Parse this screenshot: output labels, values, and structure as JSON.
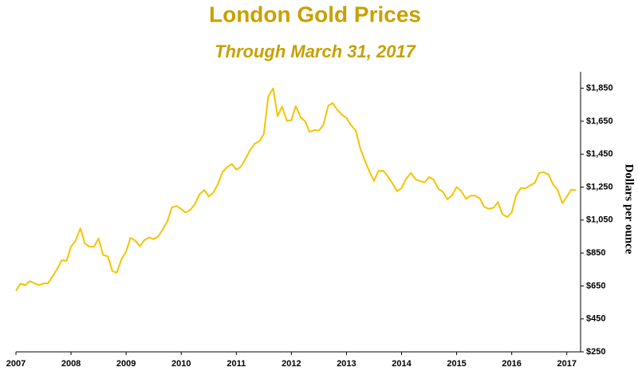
{
  "chart_data": {
    "type": "line",
    "title": "London Gold Prices",
    "subtitle": "Through March 31, 2017",
    "y_label": "Dollars per ounce",
    "xlim": [
      2007,
      2017.25
    ],
    "xticks": [
      2007,
      2008,
      2009,
      2010,
      2011,
      2012,
      2013,
      2014,
      2015,
      2016,
      2017
    ],
    "ylim": [
      250,
      1950
    ],
    "yticks": [
      {
        "value": 250,
        "label": "$250"
      },
      {
        "value": 450,
        "label": "$450"
      },
      {
        "value": 650,
        "label": "$650"
      },
      {
        "value": 850,
        "label": "$850"
      },
      {
        "value": 1050,
        "label": "$1,050"
      },
      {
        "value": 1250,
        "label": "$1,250"
      },
      {
        "value": 1450,
        "label": "$1,450"
      },
      {
        "value": 1650,
        "label": "$1,650"
      },
      {
        "value": 1850,
        "label": "$1,850"
      }
    ],
    "x": [
      2007,
      2007.08,
      2007.17,
      2007.25,
      2007.33,
      2007.42,
      2007.5,
      2007.58,
      2007.67,
      2007.75,
      2007.83,
      2007.92,
      2008,
      2008.08,
      2008.17,
      2008.25,
      2008.33,
      2008.42,
      2008.5,
      2008.58,
      2008.67,
      2008.75,
      2008.83,
      2008.92,
      2009,
      2009.08,
      2009.17,
      2009.25,
      2009.33,
      2009.42,
      2009.5,
      2009.58,
      2009.67,
      2009.75,
      2009.83,
      2009.92,
      2010,
      2010.08,
      2010.17,
      2010.25,
      2010.33,
      2010.42,
      2010.5,
      2010.58,
      2010.67,
      2010.75,
      2010.83,
      2010.92,
      2011,
      2011.08,
      2011.17,
      2011.25,
      2011.33,
      2011.42,
      2011.5,
      2011.58,
      2011.67,
      2011.75,
      2011.83,
      2011.92,
      2012,
      2012.08,
      2012.17,
      2012.25,
      2012.33,
      2012.42,
      2012.5,
      2012.58,
      2012.67,
      2012.75,
      2012.83,
      2012.92,
      2013,
      2013.08,
      2013.17,
      2013.25,
      2013.33,
      2013.42,
      2013.5,
      2013.58,
      2013.67,
      2013.75,
      2013.83,
      2013.92,
      2014,
      2014.08,
      2014.17,
      2014.25,
      2014.33,
      2014.42,
      2014.5,
      2014.58,
      2014.67,
      2014.75,
      2014.83,
      2014.92,
      2015,
      2015.08,
      2015.17,
      2015.25,
      2015.33,
      2015.42,
      2015.5,
      2015.58,
      2015.67,
      2015.75,
      2015.83,
      2015.92,
      2016,
      2016.08,
      2016.17,
      2016.25,
      2016.33,
      2016.42,
      2016.5,
      2016.58,
      2016.67,
      2016.75,
      2016.83,
      2016.92,
      2017,
      2017.08,
      2017.17
    ],
    "series": [
      {
        "name": "Gold",
        "color": "#f5c400",
        "values": [
          620,
          664,
          655,
          679,
          667,
          655,
          665,
          665,
          712,
          754,
          806,
          803,
          889,
          923,
          1000,
          909,
          888,
          889,
          939,
          839,
          829,
          740,
          730,
          816,
          858,
          943,
          924,
          891,
          928,
          945,
          934,
          949,
          996,
          1043,
          1127,
          1135,
          1117,
          1095,
          1113,
          1148,
          1205,
          1233,
          1193,
          1215,
          1271,
          1342,
          1370,
          1391,
          1356,
          1372,
          1424,
          1474,
          1512,
          1529,
          1572,
          1800,
          1850,
          1680,
          1739,
          1652,
          1656,
          1742,
          1673,
          1650,
          1585,
          1596,
          1594,
          1626,
          1744,
          1760,
          1721,
          1688,
          1670,
          1627,
          1593,
          1487,
          1414,
          1343,
          1287,
          1348,
          1349,
          1316,
          1275,
          1225,
          1244,
          1300,
          1336,
          1299,
          1287,
          1279,
          1311,
          1296,
          1239,
          1222,
          1176,
          1202,
          1251,
          1227,
          1179,
          1198,
          1199,
          1182,
          1131,
          1118,
          1125,
          1159,
          1086,
          1068,
          1097,
          1200,
          1246,
          1242,
          1260,
          1276,
          1337,
          1340,
          1326,
          1266,
          1236,
          1152,
          1192,
          1234,
          1231
        ]
      }
    ]
  }
}
